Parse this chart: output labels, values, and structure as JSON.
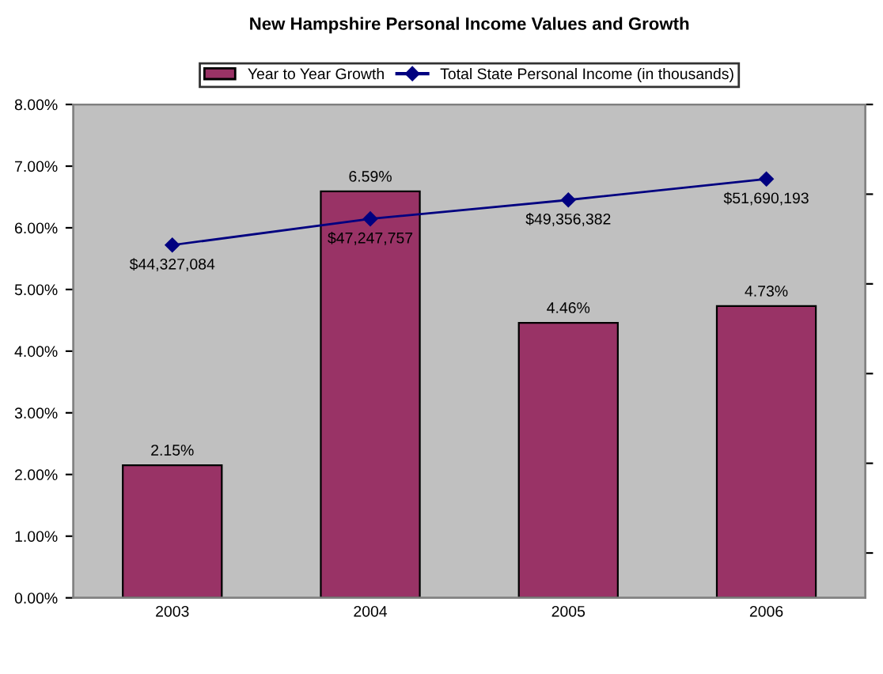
{
  "chart_data": {
    "type": "bar",
    "title": "New Hampshire Personal Income Values and Growth",
    "categories": [
      "2003",
      "2004",
      "2005",
      "2006"
    ],
    "series": [
      {
        "name": "Year to Year Growth",
        "color": "#993366",
        "values": [
          2.15,
          6.59,
          4.46,
          4.73
        ],
        "value_labels": [
          "2.15%",
          "6.59%",
          "4.46%",
          "4.73%"
        ]
      },
      {
        "name": "Total State Personal Income (in thousands)",
        "type": "line",
        "axis": "y2",
        "color": "#000080",
        "marker": "diamond",
        "line_style": "solid",
        "values": [
          44327084,
          47247757,
          49356382,
          51690193
        ],
        "value_labels": [
          "$44,327,084",
          "$47,247,757",
          "$49,356,382",
          "$51,690,193"
        ]
      }
    ],
    "ylim": [
      0,
      8
    ],
    "yticks": [
      {
        "value": 0,
        "label": "0.00%"
      },
      {
        "value": 1,
        "label": "1.00%"
      },
      {
        "value": 2,
        "label": "2.00%"
      },
      {
        "value": 3,
        "label": "3.00%"
      },
      {
        "value": 4,
        "label": "4.00%"
      },
      {
        "value": 5,
        "label": "5.00%"
      },
      {
        "value": 6,
        "label": "6.00%"
      },
      {
        "value": 7,
        "label": "7.00%"
      },
      {
        "value": 8,
        "label": "8.00%"
      }
    ],
    "y2lim": [
      5000000,
      60000000
    ],
    "y2ticks": [
      {
        "value": 10000000,
        "label": null
      },
      {
        "value": 20000000,
        "label": null
      },
      {
        "value": 30000000,
        "label": null
      },
      {
        "value": 40000000,
        "label": null
      },
      {
        "value": 50000000,
        "label": null
      },
      {
        "value": 60000000,
        "label": null
      }
    ],
    "grid": false,
    "legend": "top"
  }
}
